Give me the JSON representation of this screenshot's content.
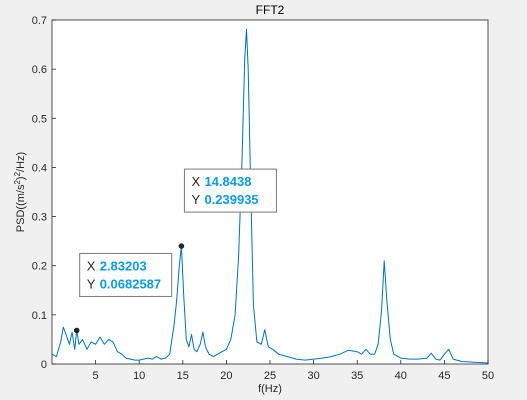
{
  "chart_data": {
    "type": "line",
    "title": "FFT2",
    "xlabel": "f(Hz)",
    "ylabel": "PSD((m/s^2)^2/Hz)",
    "xlim": [
      0,
      50
    ],
    "ylim": [
      0,
      0.7
    ],
    "grid": false,
    "xticks": [
      5,
      10,
      15,
      20,
      25,
      30,
      35,
      40,
      45,
      50
    ],
    "yticks": [
      0,
      0.1,
      0.2,
      0.3,
      0.4,
      0.5,
      0.6,
      0.7
    ],
    "ytick_labels": [
      "0",
      "0.1",
      "0.2",
      "0.3",
      "0.4",
      "0.5",
      "0.6",
      "0.7"
    ],
    "line_color": "#0072bd",
    "series": [
      {
        "x": [
          0,
          0.5,
          1.0,
          1.3,
          1.6,
          2.0,
          2.3,
          2.6,
          2.83,
          3.1,
          3.5,
          4.0,
          4.5,
          5.0,
          5.5,
          6.0,
          6.5,
          7.0,
          7.5,
          8.0,
          8.5,
          9.0,
          9.5,
          10.0,
          10.5,
          11.0,
          11.5,
          12.0,
          12.5,
          13.0,
          13.5,
          14.0,
          14.3,
          14.6,
          14.84,
          15.1,
          15.4,
          15.7,
          16.0,
          16.3,
          16.6,
          17.0,
          17.3,
          17.6,
          18.0,
          18.5,
          19.0,
          19.5,
          20.0,
          20.5,
          21.0,
          21.4,
          21.8,
          22.1,
          22.3,
          22.5,
          22.8,
          23.1,
          23.5,
          24.0,
          24.4,
          24.8,
          25.3,
          26.0,
          27.0,
          28.0,
          29.0,
          30.0,
          31.0,
          32.0,
          33.0,
          34.0,
          35.0,
          35.5,
          36.0,
          36.5,
          37.0,
          37.4,
          37.8,
          38.1,
          38.4,
          38.8,
          39.2,
          40.0,
          41.0,
          42.0,
          43.0,
          43.5,
          44.0,
          44.5,
          45.0,
          45.5,
          46.0,
          47.0,
          48.0,
          49.0,
          50.0
        ],
        "y": [
          0.02,
          0.015,
          0.045,
          0.075,
          0.06,
          0.04,
          0.065,
          0.03,
          0.0683,
          0.04,
          0.05,
          0.03,
          0.045,
          0.04,
          0.055,
          0.04,
          0.05,
          0.045,
          0.025,
          0.02,
          0.012,
          0.01,
          0.008,
          0.008,
          0.01,
          0.012,
          0.01,
          0.015,
          0.01,
          0.012,
          0.02,
          0.08,
          0.13,
          0.2,
          0.2399,
          0.14,
          0.05,
          0.035,
          0.06,
          0.03,
          0.025,
          0.04,
          0.065,
          0.035,
          0.02,
          0.015,
          0.02,
          0.025,
          0.03,
          0.05,
          0.1,
          0.22,
          0.42,
          0.62,
          0.681,
          0.6,
          0.35,
          0.12,
          0.045,
          0.04,
          0.07,
          0.035,
          0.03,
          0.02,
          0.015,
          0.01,
          0.008,
          0.01,
          0.012,
          0.015,
          0.02,
          0.028,
          0.025,
          0.02,
          0.03,
          0.02,
          0.02,
          0.04,
          0.11,
          0.21,
          0.13,
          0.05,
          0.02,
          0.012,
          0.01,
          0.01,
          0.012,
          0.022,
          0.01,
          0.008,
          0.02,
          0.03,
          0.01,
          0.005,
          0.004,
          0.003,
          0.002
        ]
      }
    ],
    "datatips": [
      {
        "x_label": "X",
        "y_label": "Y",
        "x_value": "2.83203",
        "y_value": "0.0682587",
        "x": 2.83203,
        "y": 0.0682587
      },
      {
        "x_label": "X",
        "y_label": "Y",
        "x_value": "14.8438",
        "y_value": "0.239935",
        "x": 14.8438,
        "y": 0.239935
      }
    ],
    "value_color": "#0a9be0"
  }
}
